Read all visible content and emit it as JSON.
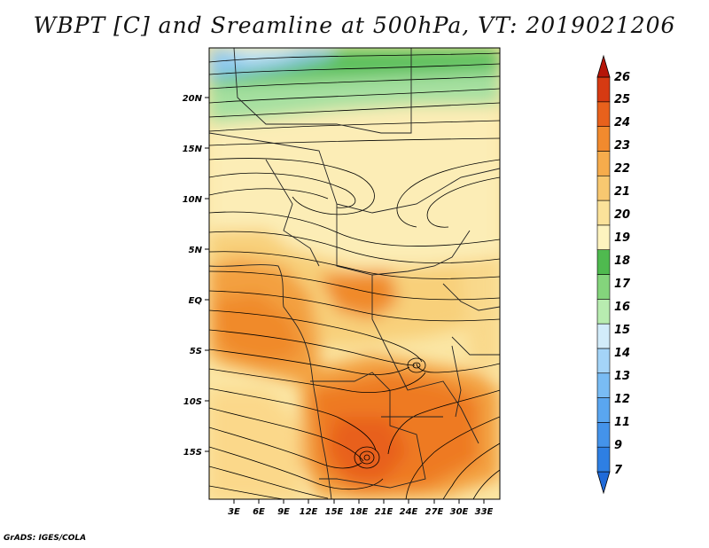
{
  "title": "WBPT [C] and Sreamline at 500hPa, VT: 2019021206",
  "credit": "GrADS: IGES/COLA",
  "map": {
    "lat_labels": [
      "20N",
      "15N",
      "10N",
      "5N",
      "EQ",
      "5S",
      "10S",
      "15S"
    ],
    "lon_labels": [
      "3E",
      "6E",
      "9E",
      "12E",
      "15E",
      "18E",
      "21E",
      "24E",
      "27E",
      "30E",
      "33E"
    ]
  },
  "colorbar": {
    "labels": [
      "7",
      "9",
      "11",
      "12",
      "13",
      "14",
      "15",
      "16",
      "17",
      "18",
      "19",
      "20",
      "21",
      "22",
      "23",
      "24",
      "25",
      "26"
    ],
    "colors": [
      "#1f6ad9",
      "#2e7fe3",
      "#4493ea",
      "#5aa6f0",
      "#79bcf4",
      "#a4d4f8",
      "#d2ecfa",
      "#b8ecb0",
      "#84d47c",
      "#4fba4f",
      "#fdf3bf",
      "#fbe29a",
      "#f8c870",
      "#f6ac4c",
      "#f18a2e",
      "#e8611c",
      "#d63a12",
      "#b51508"
    ]
  }
}
